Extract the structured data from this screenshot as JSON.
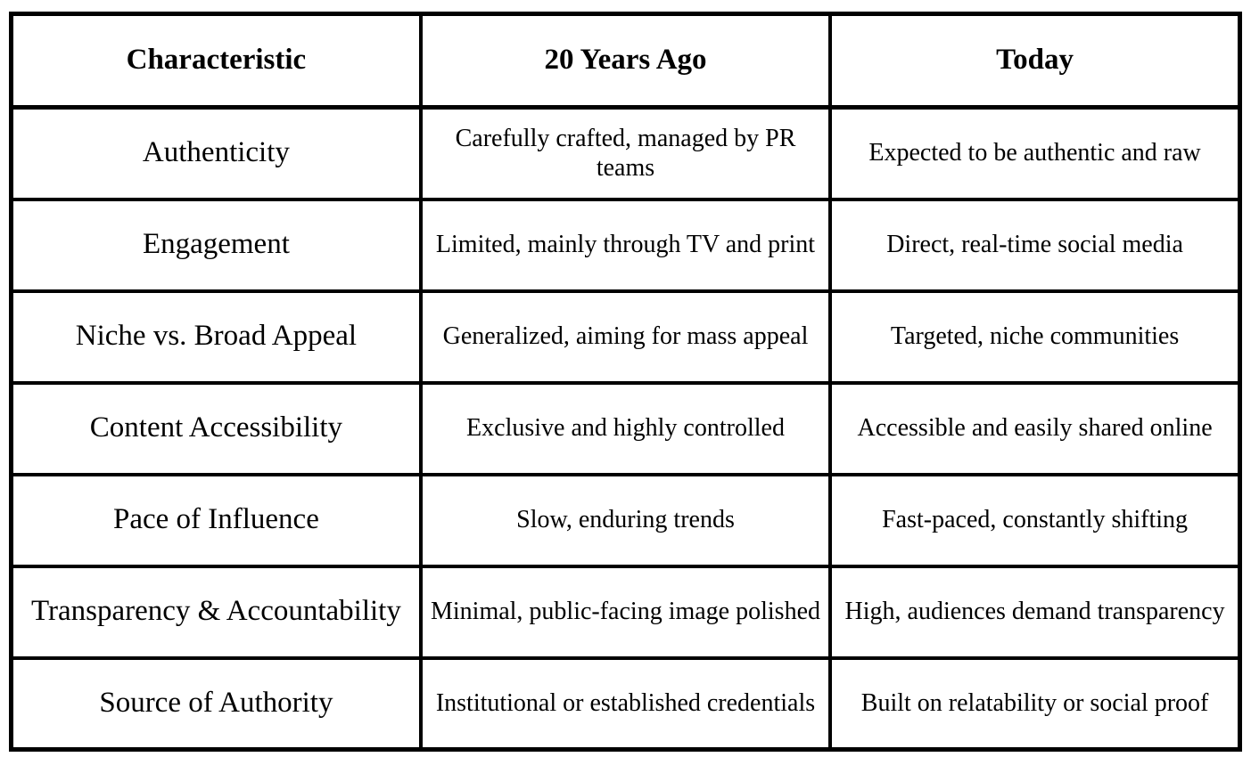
{
  "colors": {
    "background": "#ffffff",
    "border": "#000000",
    "text": "#000000"
  },
  "table": {
    "headers": [
      "Characteristic",
      "20 Years Ago",
      "Today"
    ],
    "rows": [
      {
        "characteristic": "Authenticity",
        "twenty_years_ago": "Carefully crafted, managed by PR\nteams",
        "today": "Expected to be authentic and raw"
      },
      {
        "characteristic": "Engagement",
        "twenty_years_ago": "Limited, mainly through TV and print",
        "today": "Direct, real-time social media"
      },
      {
        "characteristic": "Niche vs. Broad Appeal",
        "twenty_years_ago": "Generalized, aiming for mass appeal",
        "today": "Targeted, niche communities"
      },
      {
        "characteristic": "Content Accessibility",
        "twenty_years_ago": "Exclusive and highly controlled",
        "today": "Accessible and easily shared online"
      },
      {
        "characteristic": "Pace of Influence",
        "twenty_years_ago": "Slow, enduring trends",
        "today": "Fast-paced, constantly shifting"
      },
      {
        "characteristic": "Transparency & Accountability",
        "twenty_years_ago": "Minimal, public-facing image polished",
        "today": "High, audiences demand transparency"
      },
      {
        "characteristic": "Source of Authority",
        "twenty_years_ago": "Institutional or established credentials",
        "today": "Built on relatability or social proof"
      }
    ]
  }
}
